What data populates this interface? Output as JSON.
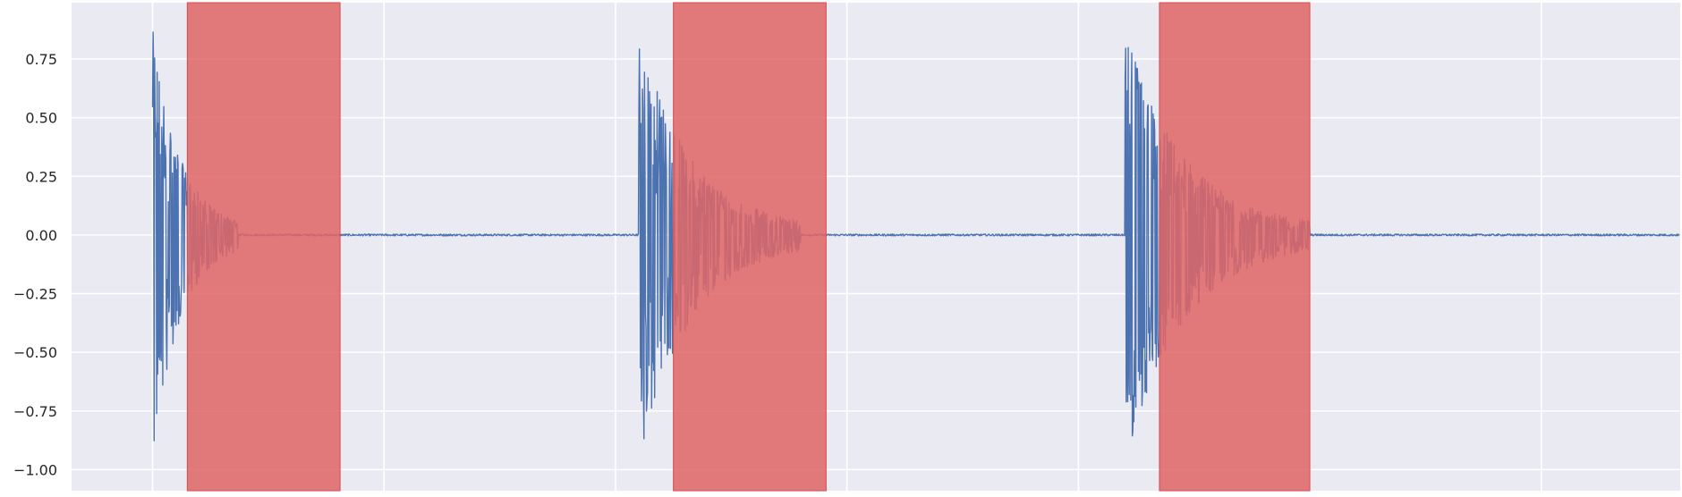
{
  "chart_data": {
    "type": "line",
    "title": "",
    "xlabel": "",
    "ylabel": "",
    "grid": true,
    "xlim": [
      -0.35,
      6.6
    ],
    "ylim": [
      -1.09,
      0.99
    ],
    "yticks": [
      {
        "value": 0.75,
        "label": "0.75"
      },
      {
        "value": 0.5,
        "label": "0.50"
      },
      {
        "value": 0.25,
        "label": "0.25"
      },
      {
        "value": 0.0,
        "label": "0.00"
      },
      {
        "value": -0.25,
        "label": "−0.25"
      },
      {
        "value": -0.5,
        "label": "−0.50"
      },
      {
        "value": -0.75,
        "label": "−0.75"
      },
      {
        "value": -1.0,
        "label": "−1.00"
      }
    ],
    "xgrid": [
      0,
      1,
      2,
      3,
      4,
      5,
      6
    ],
    "colors": {
      "background": "#eaeaf2",
      "grid": "#ffffff",
      "waveform": "#4c72b0",
      "highlight": "#e06666"
    },
    "highlight_spans": [
      {
        "start": 0.15,
        "end": 0.81
      },
      {
        "start": 2.25,
        "end": 2.91
      },
      {
        "start": 4.35,
        "end": 5.0
      }
    ],
    "series": [
      {
        "kind": "decaying-waveform",
        "onsets": [
          {
            "start": 0.0,
            "end": 0.37
          },
          {
            "start": 2.1,
            "end": 2.8
          },
          {
            "start": 4.2,
            "end": 5.0
          }
        ],
        "peak_positive": 0.9,
        "peak_negative": -1.0,
        "end_x": 6.6,
        "baseline": 0.0
      }
    ]
  }
}
